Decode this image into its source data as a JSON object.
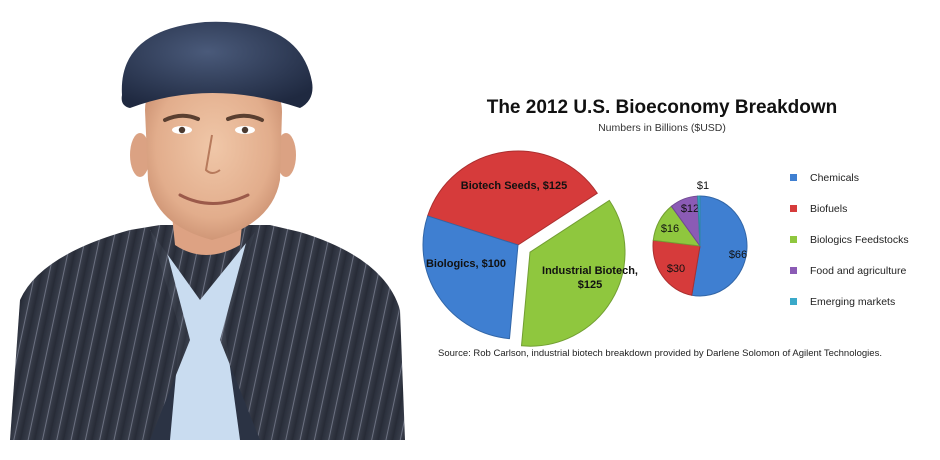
{
  "chart_data": [
    {
      "type": "pie",
      "title": "The 2012 U.S. Bioeconomy Breakdown",
      "subtitle": "Numbers in Billions ($USD)",
      "slices": [
        {
          "label": "Biotech Seeds, $125",
          "value": 125,
          "color": "#d63b3b"
        },
        {
          "label": "Industrial Biotech, $125",
          "value": 125,
          "color": "#8fc73e",
          "exploded": true
        },
        {
          "label": "Biologics, $100",
          "value": 100,
          "color": "#3f7fd1"
        }
      ]
    },
    {
      "type": "pie",
      "title": "",
      "slices": [
        {
          "label": "$66",
          "value": 66,
          "color": "#3f7fd1",
          "legend": "Chemicals"
        },
        {
          "label": "$30",
          "value": 30,
          "color": "#d63b3b",
          "legend": "Biofuels"
        },
        {
          "label": "$16",
          "value": 16,
          "color": "#8fc73e",
          "legend": "Biologics Feedstocks"
        },
        {
          "label": "$12",
          "value": 12,
          "color": "#8b5bb5",
          "legend": "Food and agriculture"
        },
        {
          "label": "$1",
          "value": 1,
          "color": "#3aa9c9",
          "legend": "Emerging markets"
        }
      ],
      "legend_position": "right"
    }
  ],
  "source": "Source: Rob Carlson, industrial biotech breakdown provided by Darlene Solomon of Agilent Technologies."
}
